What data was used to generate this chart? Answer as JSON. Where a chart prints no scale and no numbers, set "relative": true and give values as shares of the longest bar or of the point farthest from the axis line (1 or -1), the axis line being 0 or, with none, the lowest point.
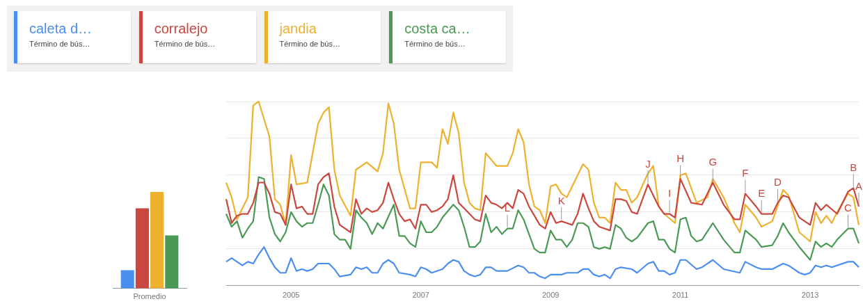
{
  "chart_data": [
    {
      "type": "bar",
      "categories": [
        "Promedio"
      ],
      "relative": true,
      "series": [
        {
          "color": "#4a8ef0",
          "values": [
            0.19
          ]
        },
        {
          "color": "#c9473e",
          "values": [
            0.83
          ]
        },
        {
          "color": "#eeb12f",
          "values": [
            1
          ]
        },
        {
          "color": "#4a9a55",
          "values": [
            0.55
          ]
        }
      ]
    },
    {
      "type": "line",
      "relative": true,
      "grid": "y",
      "legend": "top left",
      "marker": "none",
      "xlim": [
        "2004-01",
        "2013-10"
      ],
      "xticks": [
        "2005",
        "2007",
        "2009",
        "2011",
        "2013"
      ],
      "series": [
        {
          "name": "caleta d…",
          "color": "#4a8ef0",
          "x": [
            "2004-01",
            "2004-02",
            "2004-03",
            "2004-04",
            "2004-05",
            "2004-06",
            "2004-07",
            "2004-08",
            "2004-09",
            "2004-10",
            "2004-11",
            "2004-12",
            "2005-01",
            "2005-02",
            "2005-03",
            "2005-04",
            "2005-05",
            "2005-06",
            "2005-08",
            "2005-09",
            "2005-10",
            "2005-12",
            "2006-01",
            "2006-02",
            "2006-03",
            "2006-04",
            "2006-05",
            "2006-06",
            "2006-07",
            "2006-08",
            "2006-09",
            "2006-11",
            "2006-12",
            "2007-01",
            "2007-02",
            "2007-03",
            "2007-05",
            "2007-06",
            "2007-07",
            "2007-08",
            "2007-09",
            "2007-10",
            "2007-11",
            "2007-12",
            "2008-01",
            "2008-02",
            "2008-03",
            "2008-05",
            "2008-07",
            "2008-08",
            "2008-09",
            "2008-10",
            "2008-11",
            "2008-12",
            "2009-01",
            "2009-03",
            "2009-04",
            "2009-06",
            "2009-07",
            "2009-08",
            "2009-09",
            "2009-10",
            "2009-11",
            "2009-12",
            "2010-01",
            "2010-02",
            "2010-04",
            "2010-05",
            "2010-07",
            "2010-08",
            "2010-09",
            "2010-10",
            "2010-11",
            "2010-12",
            "2011-01",
            "2011-02",
            "2011-04",
            "2011-05",
            "2011-07",
            "2011-09",
            "2011-12",
            "2012-01",
            "2012-03",
            "2012-04",
            "2012-06",
            "2012-08",
            "2012-09",
            "2012-11",
            "2012-12",
            "2013-01",
            "2013-02",
            "2013-03",
            "2013-04",
            "2013-05",
            "2013-08",
            "2013-09",
            "2013-10"
          ],
          "values": [
            0.13,
            0.15,
            0.13,
            0.11,
            0.13,
            0.12,
            0.17,
            0.21,
            0.15,
            0.1,
            0.07,
            0.07,
            0.15,
            0.08,
            0.09,
            0.08,
            0.09,
            0.12,
            0.12,
            0.09,
            0.05,
            0.06,
            0.1,
            0.09,
            0.1,
            0.07,
            0.07,
            0.12,
            0.14,
            0.12,
            0.07,
            0.06,
            0.05,
            0.1,
            0.09,
            0.07,
            0.09,
            0.12,
            0.14,
            0.13,
            0.08,
            0.06,
            0.05,
            0.06,
            0.1,
            0.1,
            0.08,
            0.08,
            0.11,
            0.1,
            0.07,
            0.07,
            0.05,
            0.04,
            0.06,
            0.06,
            0.07,
            0.07,
            0.09,
            0.09,
            0.06,
            0.05,
            0.06,
            0.04,
            0.09,
            0.1,
            0.09,
            0.07,
            0.12,
            0.13,
            0.08,
            0.08,
            0.06,
            0.07,
            0.14,
            0.14,
            0.09,
            0.1,
            0.14,
            0.09,
            0.07,
            0.13,
            0.1,
            0.09,
            0.09,
            0.12,
            0.11,
            0.07,
            0.06,
            0.07,
            0.11,
            0.1,
            0.11,
            0.1,
            0.13,
            0.13,
            0.1
          ]
        },
        {
          "name": "corralejo",
          "color": "#c9473e",
          "x": [
            "2004-01",
            "2004-02",
            "2004-03",
            "2004-04",
            "2004-05",
            "2004-06",
            "2004-07",
            "2004-08",
            "2004-09",
            "2004-10",
            "2004-11",
            "2004-12",
            "2005-01",
            "2005-02",
            "2005-03",
            "2005-04",
            "2005-05",
            "2005-06",
            "2005-07",
            "2005-08",
            "2005-09",
            "2005-10",
            "2005-11",
            "2005-12",
            "2006-01",
            "2006-02",
            "2006-03",
            "2006-04",
            "2006-05",
            "2006-06",
            "2006-07",
            "2006-08",
            "2006-09",
            "2006-10",
            "2006-11",
            "2006-12",
            "2007-01",
            "2007-02",
            "2007-03",
            "2007-04",
            "2007-05",
            "2007-06",
            "2007-07",
            "2007-08",
            "2007-09",
            "2007-10",
            "2007-11",
            "2007-12",
            "2008-01",
            "2008-02",
            "2008-03",
            "2008-04",
            "2008-05",
            "2008-06",
            "2008-07",
            "2008-08",
            "2008-09",
            "2008-10",
            "2008-11",
            "2008-12",
            "2009-01",
            "2009-02",
            "2009-03",
            "2009-04",
            "2009-05",
            "2009-06",
            "2009-07",
            "2009-08",
            "2009-09",
            "2009-10",
            "2009-11",
            "2009-12",
            "2010-01",
            "2010-02",
            "2010-03",
            "2010-04",
            "2010-05",
            "2010-07",
            "2010-09",
            "2010-10",
            "2010-11",
            "2010-12",
            "2011-01",
            "2011-03",
            "2011-05",
            "2011-07",
            "2011-09",
            "2011-11",
            "2011-12",
            "2012-01",
            "2012-03",
            "2012-04",
            "2012-06",
            "2012-07",
            "2012-08",
            "2012-09",
            "2012-11",
            "2013-01",
            "2013-02",
            "2013-03",
            "2013-04",
            "2013-06",
            "2013-08",
            "2013-09",
            "2013-10"
          ],
          "values": [
            0.47,
            0.34,
            0.38,
            0.39,
            0.39,
            0.45,
            0.56,
            0.56,
            0.5,
            0.4,
            0.39,
            0.33,
            0.55,
            0.42,
            0.43,
            0.39,
            0.39,
            0.55,
            0.59,
            0.61,
            0.43,
            0.33,
            0.31,
            0.29,
            0.47,
            0.39,
            0.42,
            0.4,
            0.41,
            0.45,
            0.56,
            0.47,
            0.39,
            0.35,
            0.36,
            0.31,
            0.44,
            0.44,
            0.4,
            0.41,
            0.43,
            0.47,
            0.6,
            0.45,
            0.42,
            0.39,
            0.36,
            0.35,
            0.49,
            0.45,
            0.44,
            0.42,
            0.45,
            0.42,
            0.52,
            0.5,
            0.43,
            0.38,
            0.33,
            0.31,
            0.4,
            0.34,
            0.35,
            0.34,
            0.33,
            0.39,
            0.5,
            0.42,
            0.35,
            0.32,
            0.31,
            0.3,
            0.47,
            0.47,
            0.46,
            0.4,
            0.39,
            0.55,
            0.43,
            0.39,
            0.39,
            0.37,
            0.58,
            0.45,
            0.44,
            0.56,
            0.44,
            0.36,
            0.36,
            0.5,
            0.43,
            0.39,
            0.39,
            0.45,
            0.49,
            0.48,
            0.37,
            0.33,
            0.45,
            0.41,
            0.44,
            0.39,
            0.51,
            0.53,
            0.43
          ]
        },
        {
          "name": "jandia",
          "color": "#eeb12f",
          "x": [
            "2004-01",
            "2004-02",
            "2004-03",
            "2004-05",
            "2004-06",
            "2004-07",
            "2004-09",
            "2004-10",
            "2004-11",
            "2004-12",
            "2005-01",
            "2005-02",
            "2005-04",
            "2005-06",
            "2005-07",
            "2005-08",
            "2005-09",
            "2005-10",
            "2005-12",
            "2006-01",
            "2006-03",
            "2006-05",
            "2006-06",
            "2006-07",
            "2006-08",
            "2006-09",
            "2006-11",
            "2006-12",
            "2007-01",
            "2007-03",
            "2007-04",
            "2007-05",
            "2007-06",
            "2007-07",
            "2007-08",
            "2007-09",
            "2007-10",
            "2007-11",
            "2007-12",
            "2008-01",
            "2008-03",
            "2008-05",
            "2008-06",
            "2008-07",
            "2008-08",
            "2008-09",
            "2008-10",
            "2008-11",
            "2008-12",
            "2009-01",
            "2009-02",
            "2009-03",
            "2009-04",
            "2009-05",
            "2009-07",
            "2009-08",
            "2009-09",
            "2009-10",
            "2009-11",
            "2009-12",
            "2010-01",
            "2010-02",
            "2010-03",
            "2010-04",
            "2010-05",
            "2010-07",
            "2010-08",
            "2010-09",
            "2010-10",
            "2010-12",
            "2011-01",
            "2011-02",
            "2011-04",
            "2011-06",
            "2011-07",
            "2011-09",
            "2011-11",
            "2011-12",
            "2012-01",
            "2012-03",
            "2012-04",
            "2012-06",
            "2012-08",
            "2012-09",
            "2012-11",
            "2013-01",
            "2013-02",
            "2013-03",
            "2013-04",
            "2013-05",
            "2013-06",
            "2013-08",
            "2013-09",
            "2013-10"
          ],
          "values": [
            0.56,
            0.48,
            0.36,
            0.48,
            0.98,
            1,
            0.81,
            0.47,
            0.44,
            0.33,
            0.71,
            0.55,
            0.56,
            0.88,
            0.94,
            0.97,
            0.63,
            0.49,
            0.38,
            0.63,
            0.67,
            0.62,
            0.72,
            0.99,
            0.88,
            0.63,
            0.42,
            0.42,
            0.67,
            0.67,
            0.64,
            0.85,
            0.77,
            0.94,
            0.83,
            0.56,
            0.45,
            0.42,
            0.41,
            0.72,
            0.65,
            0.65,
            0.72,
            0.85,
            0.78,
            0.55,
            0.43,
            0.41,
            0.34,
            0.54,
            0.55,
            0.5,
            0.48,
            0.54,
            0.66,
            0.63,
            0.45,
            0.37,
            0.37,
            0.34,
            0.56,
            0.52,
            0.52,
            0.45,
            0.48,
            0.61,
            0.65,
            0.43,
            0.39,
            0.34,
            0.6,
            0.61,
            0.45,
            0.48,
            0.58,
            0.48,
            0.34,
            0.29,
            0.44,
            0.37,
            0.32,
            0.35,
            0.52,
            0.49,
            0.29,
            0.24,
            0.4,
            0.34,
            0.38,
            0.34,
            0.4,
            0.5,
            0.48,
            0.33
          ]
        },
        {
          "name": "costa ca…",
          "color": "#4a9a55",
          "x": [
            "2004-01",
            "2004-02",
            "2004-03",
            "2004-04",
            "2004-05",
            "2004-06",
            "2004-07",
            "2004-08",
            "2004-09",
            "2004-10",
            "2004-11",
            "2004-12",
            "2005-01",
            "2005-02",
            "2005-03",
            "2005-04",
            "2005-05",
            "2005-06",
            "2005-07",
            "2005-08",
            "2005-09",
            "2005-10",
            "2005-11",
            "2005-12",
            "2006-01",
            "2006-02",
            "2006-03",
            "2006-04",
            "2006-05",
            "2006-06",
            "2006-08",
            "2006-09",
            "2006-10",
            "2006-11",
            "2006-12",
            "2007-01",
            "2007-02",
            "2007-03",
            "2007-04",
            "2007-05",
            "2007-07",
            "2007-08",
            "2007-09",
            "2007-10",
            "2007-11",
            "2007-12",
            "2008-01",
            "2008-02",
            "2008-03",
            "2008-04",
            "2008-05",
            "2008-06",
            "2008-07",
            "2008-08",
            "2008-09",
            "2008-10",
            "2008-11",
            "2008-12",
            "2009-01",
            "2009-02",
            "2009-03",
            "2009-04",
            "2009-05",
            "2009-06",
            "2009-07",
            "2009-08",
            "2009-09",
            "2009-10",
            "2009-11",
            "2009-12",
            "2010-01",
            "2010-02",
            "2010-03",
            "2010-04",
            "2010-05",
            "2010-07",
            "2010-08",
            "2010-09",
            "2010-10",
            "2010-11",
            "2010-12",
            "2011-01",
            "2011-02",
            "2011-03",
            "2011-04",
            "2011-05",
            "2011-07",
            "2011-09",
            "2011-11",
            "2011-12",
            "2012-01",
            "2012-03",
            "2012-04",
            "2012-06",
            "2012-07",
            "2012-08",
            "2012-09",
            "2012-11",
            "2013-01",
            "2013-02",
            "2013-03",
            "2013-04",
            "2013-05",
            "2013-06",
            "2013-08",
            "2013-09",
            "2013-10"
          ],
          "values": [
            0.39,
            0.32,
            0.35,
            0.26,
            0.31,
            0.35,
            0.59,
            0.58,
            0.37,
            0.28,
            0.24,
            0.29,
            0.4,
            0.35,
            0.32,
            0.34,
            0.34,
            0.44,
            0.55,
            0.49,
            0.28,
            0.25,
            0.25,
            0.2,
            0.41,
            0.37,
            0.34,
            0.28,
            0.34,
            0.31,
            0.44,
            0.27,
            0.27,
            0.23,
            0.21,
            0.35,
            0.29,
            0.29,
            0.32,
            0.37,
            0.44,
            0.41,
            0.32,
            0.21,
            0.21,
            0.24,
            0.39,
            0.29,
            0.32,
            0.28,
            0.31,
            0.31,
            0.41,
            0.36,
            0.28,
            0.2,
            0.18,
            0.18,
            0.3,
            0.25,
            0.25,
            0.21,
            0.25,
            0.34,
            0.34,
            0.32,
            0.21,
            0.2,
            0.21,
            0.2,
            0.33,
            0.31,
            0.26,
            0.24,
            0.26,
            0.34,
            0.35,
            0.25,
            0.25,
            0.2,
            0.18,
            0.36,
            0.37,
            0.27,
            0.24,
            0.25,
            0.34,
            0.25,
            0.18,
            0.18,
            0.3,
            0.25,
            0.21,
            0.22,
            0.27,
            0.34,
            0.29,
            0.21,
            0.14,
            0.24,
            0.21,
            0.23,
            0.21,
            0.25,
            0.31,
            0.31,
            0.23
          ]
        }
      ],
      "annotations": [
        "Término de bús…",
        "Término de bús…",
        "Término de bús…",
        "Término de bús…",
        {
          "text": "L",
          "x": "2008-05",
          "y": 0.31
        },
        {
          "text": "K",
          "x": "2009-03",
          "y": 0.35
        },
        {
          "text": "J",
          "x": "2010-07",
          "y": 0.55
        },
        {
          "text": "I",
          "x": "2010-11",
          "y": 0.39
        },
        {
          "text": "H",
          "x": "2011-01",
          "y": 0.58
        },
        {
          "text": "G",
          "x": "2011-07",
          "y": 0.56
        },
        {
          "text": "F",
          "x": "2012-01",
          "y": 0.5
        },
        {
          "text": "E",
          "x": "2012-04",
          "y": 0.39
        },
        {
          "text": "D",
          "x": "2012-07",
          "y": 0.45
        },
        {
          "text": "C",
          "x": "2013-08",
          "y": 0.31
        },
        {
          "text": "B",
          "x": "2013-09",
          "y": 0.53
        },
        {
          "text": "A",
          "x": "2013-10",
          "y": 0.43
        }
      ]
    }
  ]
}
